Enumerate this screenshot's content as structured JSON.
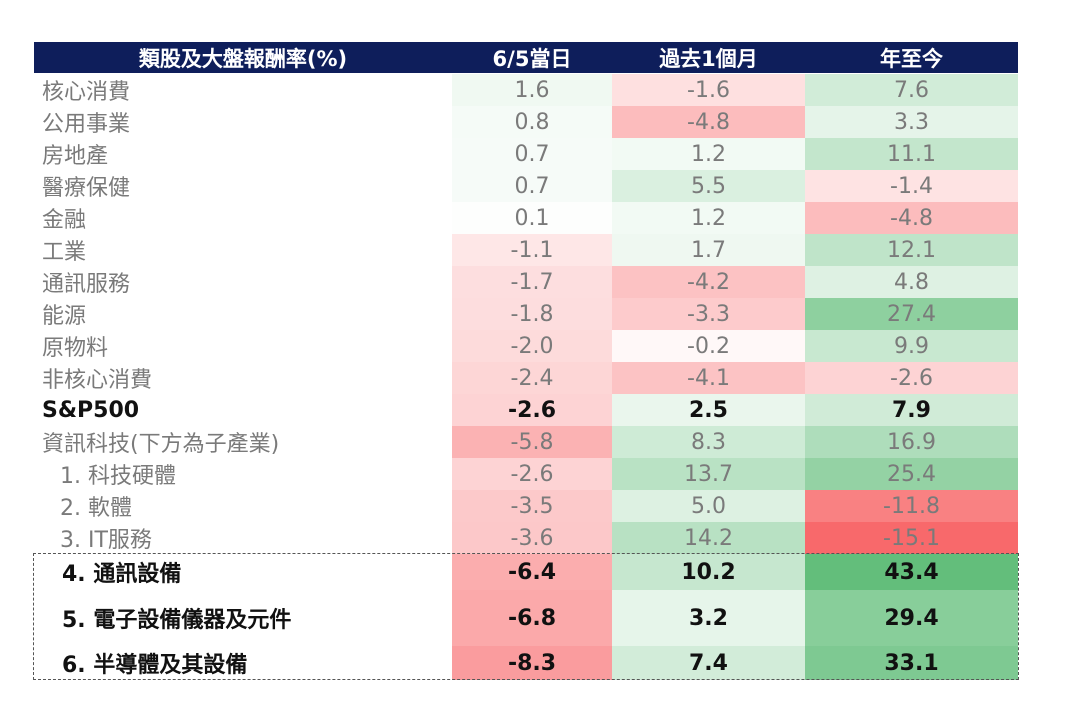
{
  "header": [
    "類股及大盤報酬率(%)",
    "6/5當日",
    "過去1個月",
    "年至今"
  ],
  "rows": [
    [
      "核心消費",
      "1.6",
      "-1.6",
      "7.6"
    ],
    [
      "公用事業",
      "0.8",
      "-4.8",
      "3.3"
    ],
    [
      "房地產",
      "0.7",
      "1.2",
      "11.1"
    ],
    [
      "醫療保健",
      "0.7",
      "5.5",
      "-1.4"
    ],
    [
      "金融",
      "0.1",
      "1.2",
      "-4.8"
    ],
    [
      "工業",
      "-1.1",
      "1.7",
      "12.1"
    ],
    [
      "通訊服務",
      "-1.7",
      "-4.2",
      "4.8"
    ],
    [
      "能源",
      "-1.8",
      "-3.3",
      "27.4"
    ],
    [
      "原物料",
      "-2.0",
      "-0.2",
      "9.9"
    ],
    [
      "非核心消費",
      "-2.4",
      "-4.1",
      "-2.6"
    ],
    [
      "S&P500",
      "-2.6",
      "2.5",
      "7.9"
    ],
    [
      "資訊科技(下方為子產業)",
      "-5.8",
      "8.3",
      "16.9"
    ],
    [
      "1. 科技硬體",
      "-2.6",
      "13.7",
      "25.4"
    ],
    [
      "2. 軟體",
      "-3.5",
      "5.0",
      "-11.8"
    ],
    [
      "3. IT服務",
      "-3.6",
      "14.2",
      "-15.1"
    ],
    [
      "4. 通訊設備",
      "-6.4",
      "10.2",
      "43.4"
    ],
    [
      "5. 電子設備儀器及元件",
      "-6.8",
      "3.2",
      "29.4"
    ],
    [
      "6. 半導體及其設備",
      "-8.3",
      "7.4",
      "33.1"
    ]
  ]
}
